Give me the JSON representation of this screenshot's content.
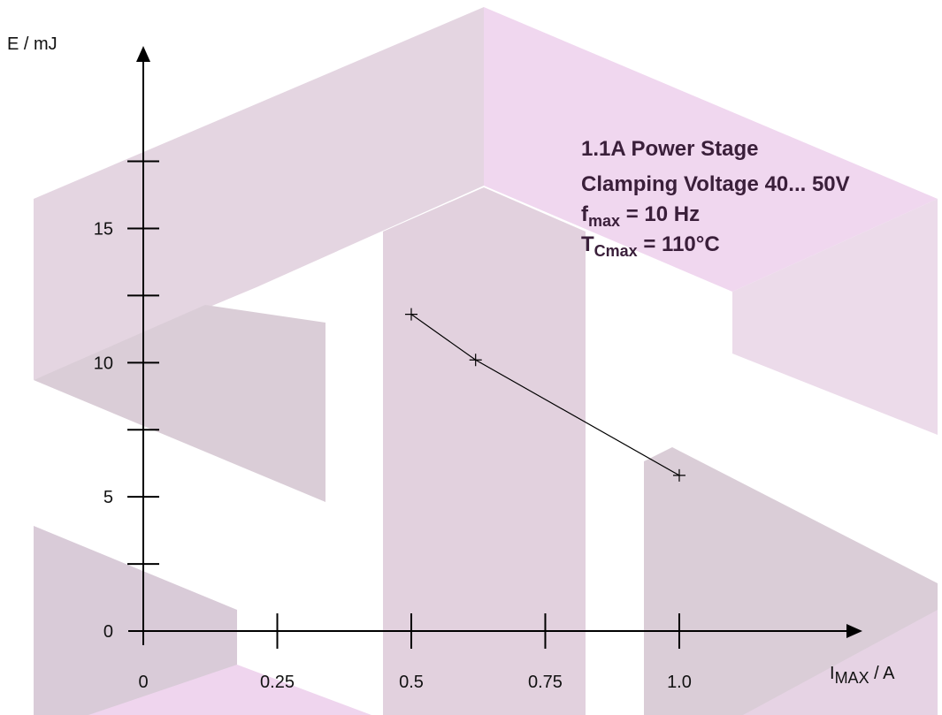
{
  "chart_data": {
    "type": "line",
    "y_label": "E / mJ",
    "x_label": {
      "main": "I",
      "sub": "MAX",
      "rest": " / A"
    },
    "annotations": [
      {
        "text": "1.1A Power Stage"
      },
      {
        "text": "Clamping Voltage 40... 50V"
      },
      {
        "text": "f",
        "sub": "max",
        "rest": " = 10 Hz"
      },
      {
        "text": "T",
        "sub": "Cmax",
        "rest": " = 110°C"
      }
    ],
    "x": [
      0.5,
      0.62,
      1.0
    ],
    "series": [
      {
        "color": "#000000",
        "values": [
          11.8,
          10.1,
          5.8
        ]
      }
    ],
    "xlim": [
      0,
      1.34
    ],
    "ylim": [
      0,
      21.7
    ],
    "xticks": [
      0,
      0.25,
      0.5,
      0.75,
      {
        "value": 1,
        "label": "1.0"
      }
    ],
    "yticks": [
      0,
      5,
      10,
      15
    ],
    "yminorticks": [
      2.5,
      7.5,
      12.5,
      17.5
    ]
  }
}
